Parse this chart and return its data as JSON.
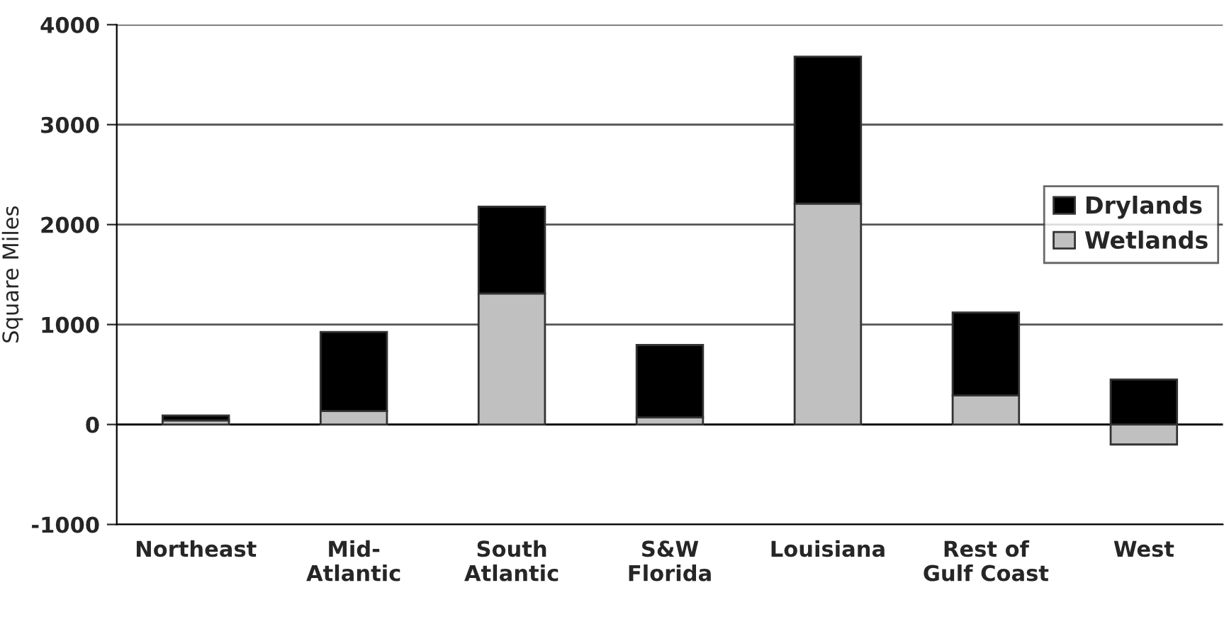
{
  "chart_data": {
    "type": "bar",
    "stacked": true,
    "ylabel": "Square Miles",
    "categories": [
      "Northeast",
      "Mid-\nAtlantic",
      "South\nAtlantic",
      "S&W\nFlorida",
      "Louisiana",
      "Rest of\nGulf Coast",
      "West"
    ],
    "series": [
      {
        "name": "Wetlands",
        "color": "#c0c0c0",
        "values": [
          40,
          135,
          1310,
          70,
          2210,
          290,
          -200
        ]
      },
      {
        "name": "Drylands",
        "color": "#000000",
        "values": [
          50,
          790,
          870,
          725,
          1470,
          830,
          450
        ]
      }
    ],
    "ylim": [
      -1000,
      4000
    ],
    "yticks": [
      {
        "value": -1000,
        "label": "-1000"
      },
      0,
      1000,
      2000,
      3000,
      4000
    ],
    "grid": "y",
    "legend": "right"
  }
}
